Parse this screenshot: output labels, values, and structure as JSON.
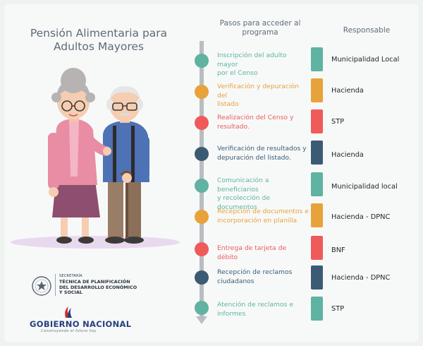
{
  "title_line1": "Pensión Alimentaria para",
  "title_line2": "Adultos Mayores",
  "header_steps_line1": "Pasos para acceder al",
  "header_steps_line2": "programa",
  "header_responsible": "Responsable",
  "colors": {
    "teal": "#5fb3a0",
    "orange": "#e8a23b",
    "red": "#ef5b5b",
    "navy": "#3b5b74"
  },
  "steps": [
    {
      "line1": "Inscripción del adulto mayor",
      "line2": "por el Censo",
      "color": "#5fb3a0",
      "responsible": "Municipalidad Local"
    },
    {
      "line1": "Verificación y depuración del",
      "line2": "listado",
      "color": "#e8a23b",
      "responsible": "Hacienda"
    },
    {
      "line1": "Realización del Censo y",
      "line2": "resultado.",
      "color": "#ef5b5b",
      "responsible": "STP"
    },
    {
      "line1": "Verificación de resultados y",
      "line2": "depuración del listado.",
      "color": "#3b5b74",
      "responsible": "Hacienda"
    },
    {
      "line1": "Comunicación a beneficiarios",
      "line2": "y recolección de documentos",
      "color": "#5fb3a0",
      "responsible": "Municipalidad local"
    },
    {
      "line1": "Recepción de documentos e",
      "line2": "incorporación en planilla",
      "color": "#e8a23b",
      "responsible": "Hacienda - DPNC"
    },
    {
      "line1": "Entrega de tarjeta de débito",
      "line2": "",
      "color": "#ef5b5b",
      "responsible": "BNF"
    },
    {
      "line1": "Recepción de reclamos",
      "line2": "ciudadanos",
      "color": "#3b5b74",
      "responsible": "Hacienda - DPNC"
    },
    {
      "line1": "Atención de reclamos e",
      "line2": "informes",
      "color": "#5fb3a0",
      "responsible": "STP"
    }
  ],
  "footer": {
    "sec_small": "SECRETARÍA",
    "sec_line1": "TÉCNICA DE PLANIFICACIÓN",
    "sec_line2": "DEL DESARROLLO ECONÓMICO",
    "sec_line3": "Y SOCIAL",
    "gob": "GOBIERNO NACIONAL",
    "gob_tag": "Construyendo el futuro hoy"
  }
}
